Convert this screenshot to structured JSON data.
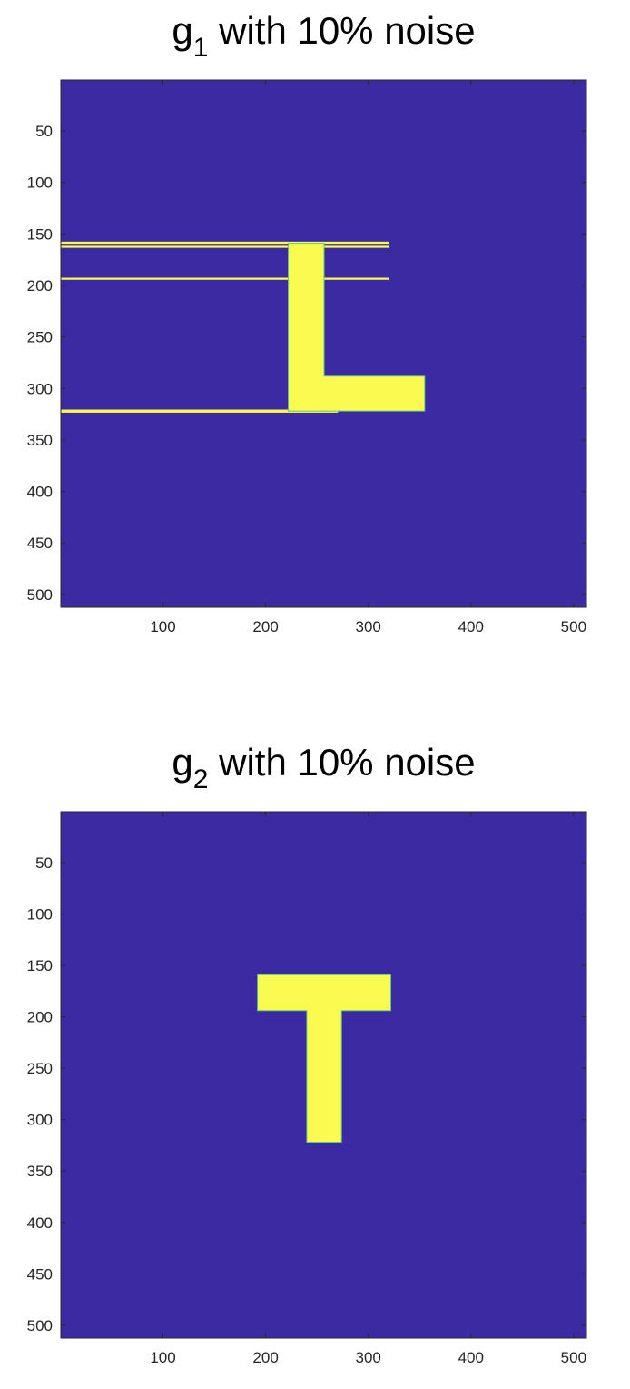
{
  "chart_data": [
    {
      "type": "heatmap",
      "title": {
        "base": "g",
        "subscript": "1",
        "rest": " with 10% noise"
      },
      "xlim": [
        0.5,
        512.5
      ],
      "ylim": [
        0.5,
        512.5
      ],
      "y_direction": "reverse",
      "xticks": [
        100,
        200,
        300,
        400,
        500
      ],
      "yticks": [
        50,
        100,
        150,
        200,
        250,
        300,
        350,
        400,
        450,
        500
      ],
      "grid": false,
      "colors": {
        "background": "#3c2aa3",
        "shape": "#f9fb4e",
        "edge": "#62c586"
      },
      "shapes": [
        {
          "x": [
            223,
            256
          ],
          "y": [
            160,
            321
          ]
        },
        {
          "x": [
            256,
            354
          ],
          "y": [
            289,
            321
          ]
        }
      ],
      "stripes": [
        {
          "x": [
            1,
            320
          ],
          "y": [
            158,
            159
          ]
        },
        {
          "x": [
            1,
            320
          ],
          "y": [
            162,
            163
          ]
        },
        {
          "x": [
            1,
            320
          ],
          "y": [
            193,
            194
          ]
        },
        {
          "x": [
            1,
            270
          ],
          "y": [
            321,
            323
          ]
        }
      ]
    },
    {
      "type": "heatmap",
      "title": {
        "base": "g",
        "subscript": "2",
        "rest": " with 10% noise"
      },
      "xlim": [
        0.5,
        512.5
      ],
      "ylim": [
        0.5,
        512.5
      ],
      "y_direction": "reverse",
      "xticks": [
        100,
        200,
        300,
        400,
        500
      ],
      "yticks": [
        50,
        100,
        150,
        200,
        250,
        300,
        350,
        400,
        450,
        500
      ],
      "grid": false,
      "colors": {
        "background": "#3c2aa3",
        "shape": "#f9fb4e",
        "edge": "#62c586"
      },
      "shapes": [
        {
          "x": [
            193,
            321
          ],
          "y": [
            160,
            193
          ]
        },
        {
          "x": [
            241,
            273
          ],
          "y": [
            193,
            321
          ]
        }
      ],
      "stripes": []
    }
  ]
}
